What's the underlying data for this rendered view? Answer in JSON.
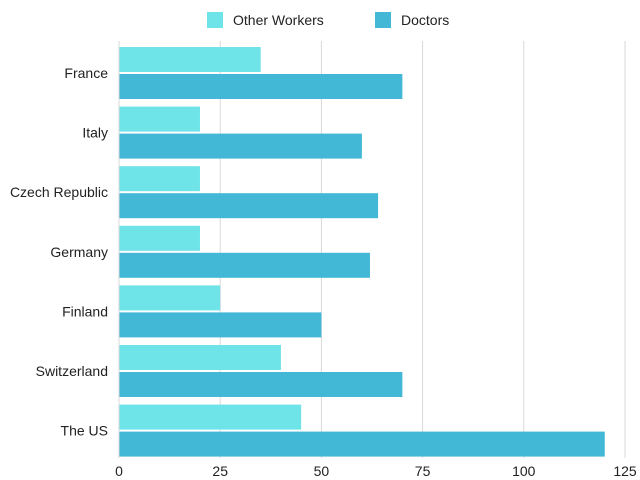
{
  "chart_data": {
    "type": "bar",
    "orientation": "horizontal",
    "categories": [
      "France",
      "Italy",
      "Czech Republic",
      "Germany",
      "Finland",
      "Switzerland",
      "The US"
    ],
    "series": [
      {
        "name": "Other Workers",
        "color": "#6ee3e8",
        "values": [
          35,
          20,
          20,
          20,
          25,
          40,
          45
        ]
      },
      {
        "name": "Doctors",
        "color": "#42b8d6",
        "values": [
          70,
          60,
          64,
          62,
          50,
          70,
          120
        ]
      }
    ],
    "x_ticks": [
      "0",
      "25",
      "50",
      "75",
      "100",
      "125"
    ],
    "xlim": [
      0,
      125
    ],
    "title": "",
    "xlabel": "",
    "ylabel": "",
    "grid": "vertical",
    "legend_position": "top-center"
  }
}
